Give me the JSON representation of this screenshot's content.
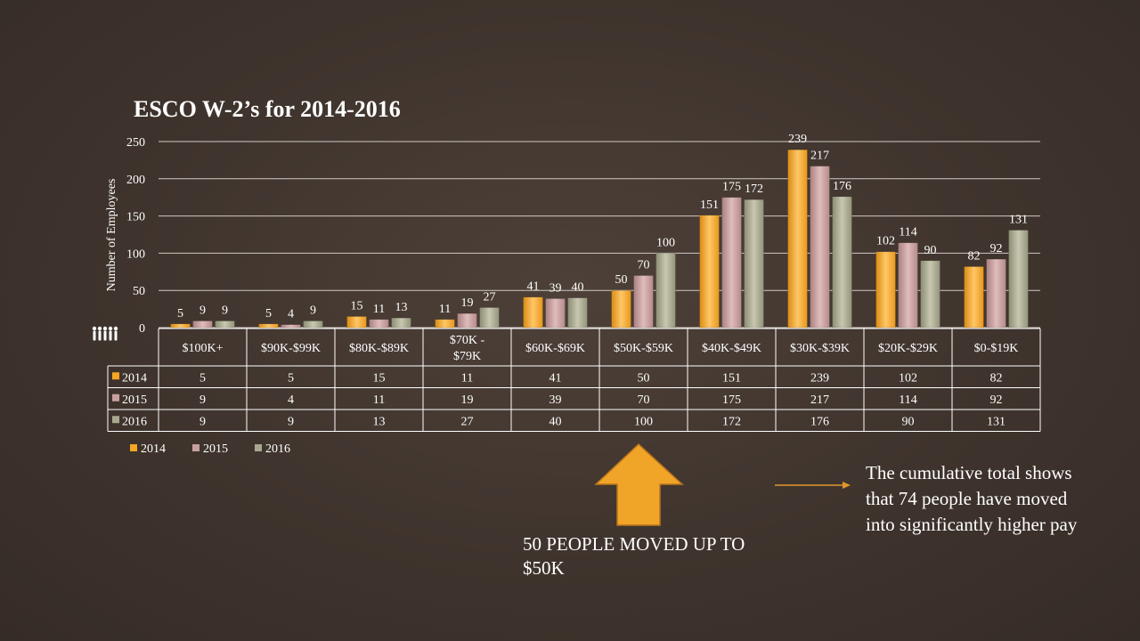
{
  "colors": {
    "2014": "#f5a623",
    "2015": "#c9a0a0",
    "2016": "#a8a88f",
    "arrow": "#f0a428",
    "pointer_line": "#e0962a"
  },
  "annotations": {
    "arrow_text": "50 PEOPLE MOVED UP TO $50K",
    "cumulative_text": "The cumulative total shows that 74 people have moved into significantly higher pay"
  },
  "chart_data": {
    "type": "bar",
    "title": "ESCO W-2’s for 2014-2016",
    "ylabel": "Number of Employees",
    "xlabel": "",
    "ylim": [
      0,
      250
    ],
    "yticks": [
      0,
      50,
      100,
      150,
      200,
      250
    ],
    "grid": true,
    "legend_position": "bottom-left",
    "data_table": true,
    "categories": [
      "$100K+",
      "$90K-$99K",
      "$80K-$89K",
      "$70K - $79K",
      "$60K-$69K",
      "$50K-$59K",
      "$40K-$49K",
      "$30K-$39K",
      "$20K-$29K",
      "$0-$19K"
    ],
    "series": [
      {
        "name": "2014",
        "values": [
          5,
          5,
          15,
          11,
          41,
          50,
          151,
          239,
          102,
          82
        ]
      },
      {
        "name": "2015",
        "values": [
          9,
          4,
          11,
          19,
          39,
          70,
          175,
          217,
          114,
          92
        ]
      },
      {
        "name": "2016",
        "values": [
          9,
          9,
          13,
          27,
          40,
          100,
          172,
          176,
          90,
          131
        ]
      }
    ]
  }
}
